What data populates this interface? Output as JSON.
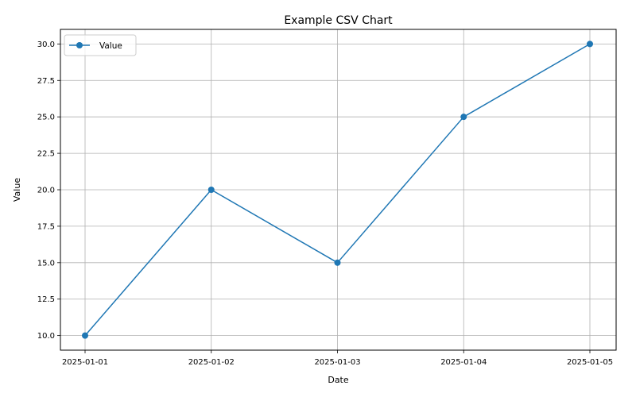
{
  "chart_data": {
    "type": "line",
    "title": "Example CSV Chart",
    "xlabel": "Date",
    "ylabel": "Value",
    "categories": [
      "2025-01-01",
      "2025-01-02",
      "2025-01-03",
      "2025-01-04",
      "2025-01-05"
    ],
    "series": [
      {
        "name": "Value",
        "values": [
          10,
          20,
          15,
          25,
          30
        ],
        "color": "#1f77b4",
        "marker": "circle"
      }
    ],
    "ylim": [
      9,
      31
    ],
    "yticks": [
      "10.0",
      "12.5",
      "15.0",
      "17.5",
      "20.0",
      "22.5",
      "25.0",
      "27.5",
      "30.0"
    ],
    "grid": true,
    "legend": "top-left"
  }
}
